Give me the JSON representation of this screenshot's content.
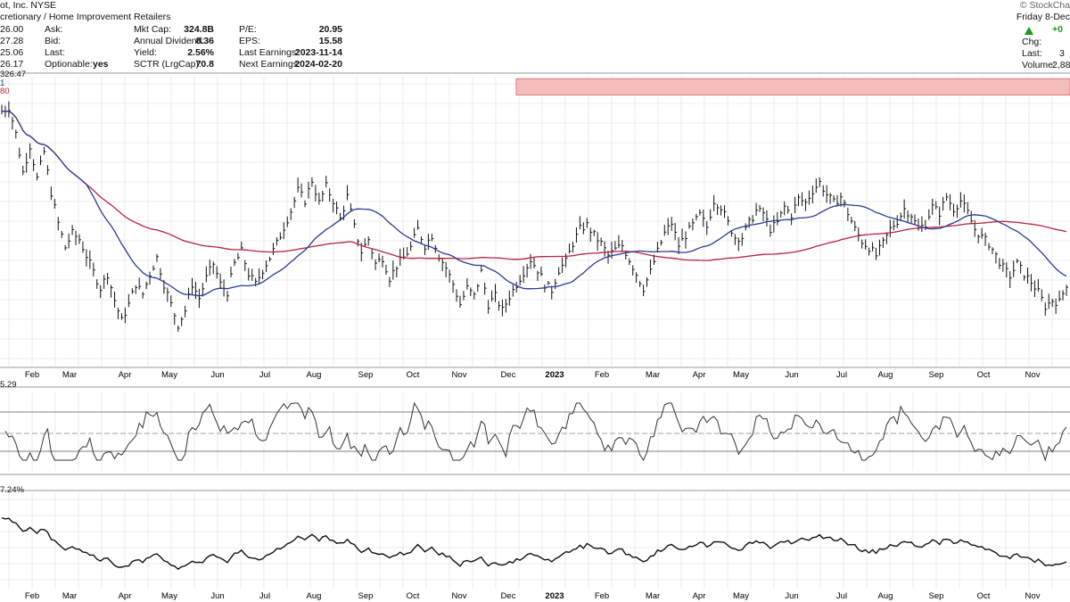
{
  "header": {
    "title_fragment": "ot, Inc.  NYSE",
    "sector_fragment": "cretionary / Home Improvement Retailers",
    "watermark": "© StockCha",
    "date_fragment": "Friday  8-Dec",
    "col1": [
      {
        "value": "26.00"
      },
      {
        "value": "27.28"
      },
      {
        "value": "25.06"
      },
      {
        "value": "26.17"
      }
    ],
    "col2": [
      {
        "label": "Ask:",
        "value": ""
      },
      {
        "label": "Bid:",
        "value": ""
      },
      {
        "label": "Last:",
        "value": ""
      },
      {
        "label": "Optionable:",
        "value": "yes"
      }
    ],
    "col3": [
      {
        "label": "Mkt Cap:",
        "value": "324.8B"
      },
      {
        "label": "Annual Dividend:",
        "value": "8.36"
      },
      {
        "label": "Yield:",
        "value": "2.56%"
      },
      {
        "label": "SCTR (LrgCap):",
        "value": "70.8"
      }
    ],
    "col4": [
      {
        "label": "P/E:",
        "value": "20.95"
      },
      {
        "label": "EPS:",
        "value": "15.58"
      },
      {
        "label": "Last Earnings:",
        "value": "2023-11-14"
      },
      {
        "label": "Next Earnings:",
        "value": "2024-02-20"
      }
    ],
    "right": {
      "change_fragment": "+0",
      "chg_label": "Chg:",
      "last_label": "Last:",
      "last_fragment": "3",
      "volume_label": "Volume:",
      "volume_fragment": "2,88"
    },
    "legend": {
      "price_fragment": "326.47",
      "ma1_fragment": "1",
      "ma2_fragment": "80",
      "rsi_fragment": "5.29",
      "rel_fragment": "7.24%"
    }
  },
  "colors": {
    "price": "#111111",
    "ma_fast": "#2b3a9a",
    "ma_slow": "#b8223c",
    "resistance_fill": "#f5bcbc",
    "resistance_stroke": "#e07a7a",
    "rsi_line": "#333333",
    "rsi_overbought": "#3a8a3a",
    "rsi_oversold": "#8a2a2a",
    "grid": "#dddddd",
    "up": "#1a9a1a"
  },
  "chart_data": [
    {
      "type": "ohlc",
      "panel": "price",
      "x_labels": [
        "Feb",
        "Mar",
        "Apr",
        "May",
        "Jun",
        "Jul",
        "Aug",
        "Sep",
        "Oct",
        "Nov",
        "Dec",
        "2023",
        "Feb",
        "Mar",
        "Apr",
        "May",
        "Jun",
        "Jul",
        "Aug",
        "Sep",
        "Oct",
        "Nov"
      ],
      "close_path": [
        [
          0,
          385
        ],
        [
          4,
          387
        ],
        [
          8,
          374
        ],
        [
          12,
          355
        ],
        [
          16,
          368
        ],
        [
          20,
          352
        ],
        [
          24,
          365
        ],
        [
          28,
          345
        ],
        [
          32,
          330
        ],
        [
          36,
          318
        ],
        [
          40,
          325
        ],
        [
          44,
          322
        ],
        [
          48,
          314
        ],
        [
          52,
          306
        ],
        [
          56,
          298
        ],
        [
          60,
          305
        ],
        [
          64,
          292
        ],
        [
          68,
          282
        ],
        [
          72,
          290
        ],
        [
          76,
          300
        ],
        [
          80,
          295
        ],
        [
          84,
          305
        ],
        [
          88,
          313
        ],
        [
          92,
          300
        ],
        [
          96,
          290
        ],
        [
          100,
          280
        ],
        [
          104,
          287
        ],
        [
          108,
          300
        ],
        [
          112,
          293
        ],
        [
          116,
          303
        ],
        [
          120,
          310
        ],
        [
          124,
          300
        ],
        [
          128,
          296
        ],
        [
          132,
          310
        ],
        [
          136,
          316
        ],
        [
          140,
          305
        ],
        [
          144,
          300
        ],
        [
          148,
          307
        ],
        [
          152,
          313
        ],
        [
          156,
          320
        ],
        [
          160,
          328
        ],
        [
          164,
          336
        ],
        [
          168,
          346
        ],
        [
          172,
          341
        ],
        [
          176,
          351
        ],
        [
          180,
          340
        ],
        [
          184,
          348
        ],
        [
          188,
          341
        ],
        [
          192,
          332
        ],
        [
          196,
          343
        ],
        [
          200,
          328
        ],
        [
          204,
          316
        ],
        [
          208,
          322
        ],
        [
          212,
          310
        ],
        [
          216,
          313
        ],
        [
          220,
          303
        ],
        [
          224,
          309
        ],
        [
          228,
          313
        ],
        [
          232,
          318
        ],
        [
          236,
          327
        ],
        [
          240,
          319
        ],
        [
          244,
          324
        ],
        [
          248,
          314
        ],
        [
          252,
          308
        ],
        [
          256,
          300
        ],
        [
          260,
          290
        ],
        [
          264,
          298
        ],
        [
          268,
          294
        ],
        [
          272,
          306
        ],
        [
          276,
          290
        ],
        [
          280,
          294
        ],
        [
          284,
          287
        ],
        [
          288,
          294
        ],
        [
          292,
          300
        ],
        [
          296,
          306
        ],
        [
          300,
          312
        ],
        [
          304,
          307
        ],
        [
          308,
          300
        ],
        [
          312,
          297
        ],
        [
          316,
          307
        ],
        [
          320,
          311
        ],
        [
          324,
          320
        ],
        [
          328,
          327
        ],
        [
          332,
          329
        ],
        [
          336,
          324
        ],
        [
          340,
          320
        ],
        [
          344,
          314
        ],
        [
          348,
          317
        ],
        [
          352,
          319
        ],
        [
          356,
          312
        ],
        [
          360,
          305
        ],
        [
          364,
          298
        ],
        [
          368,
          306
        ],
        [
          372,
          316
        ],
        [
          376,
          325
        ],
        [
          380,
          330
        ],
        [
          384,
          319
        ],
        [
          388,
          324
        ],
        [
          392,
          329
        ],
        [
          396,
          334
        ],
        [
          400,
          328
        ],
        [
          404,
          341
        ],
        [
          408,
          338
        ],
        [
          412,
          330
        ],
        [
          416,
          323
        ],
        [
          420,
          323
        ],
        [
          424,
          330
        ],
        [
          428,
          336
        ],
        [
          432,
          335
        ],
        [
          436,
          327
        ],
        [
          440,
          330
        ],
        [
          444,
          338
        ],
        [
          448,
          334
        ],
        [
          452,
          342
        ],
        [
          456,
          340
        ],
        [
          460,
          346
        ],
        [
          464,
          350
        ],
        [
          468,
          344
        ],
        [
          472,
          340
        ],
        [
          476,
          343
        ],
        [
          480,
          335
        ],
        [
          484,
          327
        ],
        [
          488,
          321
        ],
        [
          492,
          318
        ],
        [
          496,
          314
        ],
        [
          500,
          320
        ],
        [
          504,
          327
        ],
        [
          508,
          331
        ],
        [
          512,
          337
        ],
        [
          516,
          334
        ],
        [
          520,
          327
        ],
        [
          524,
          330
        ],
        [
          528,
          338
        ],
        [
          532,
          335
        ],
        [
          536,
          343
        ],
        [
          540,
          337
        ],
        [
          544,
          341
        ],
        [
          548,
          335
        ],
        [
          552,
          327
        ],
        [
          556,
          323
        ],
        [
          560,
          320
        ],
        [
          564,
          314
        ],
        [
          568,
          308
        ],
        [
          572,
          304
        ],
        [
          576,
          310
        ],
        [
          580,
          305
        ],
        [
          584,
          301
        ],
        [
          588,
          296
        ],
        [
          592,
          289
        ],
        [
          596,
          292
        ],
        [
          600,
          291
        ],
        [
          604,
          300
        ]
      ],
      "close_path_note_units": "USD per share vs trading-day index (approx.)",
      "resistance_zone": {
        "low": 393,
        "high": 401
      },
      "y_range": [
        259,
        402
      ],
      "series": [
        {
          "name": "",
          "role": "price bars"
        },
        {
          "name": "",
          "role": "fast moving average"
        },
        {
          "name": "",
          "role": "slow moving average"
        }
      ]
    },
    {
      "type": "line",
      "panel": "rsi",
      "values_note": "oscillator between bands 30 and 70 with midline 50",
      "levels": [
        30,
        50,
        70
      ]
    },
    {
      "type": "line",
      "panel": "relative",
      "values_note": "relative performance line"
    }
  ]
}
